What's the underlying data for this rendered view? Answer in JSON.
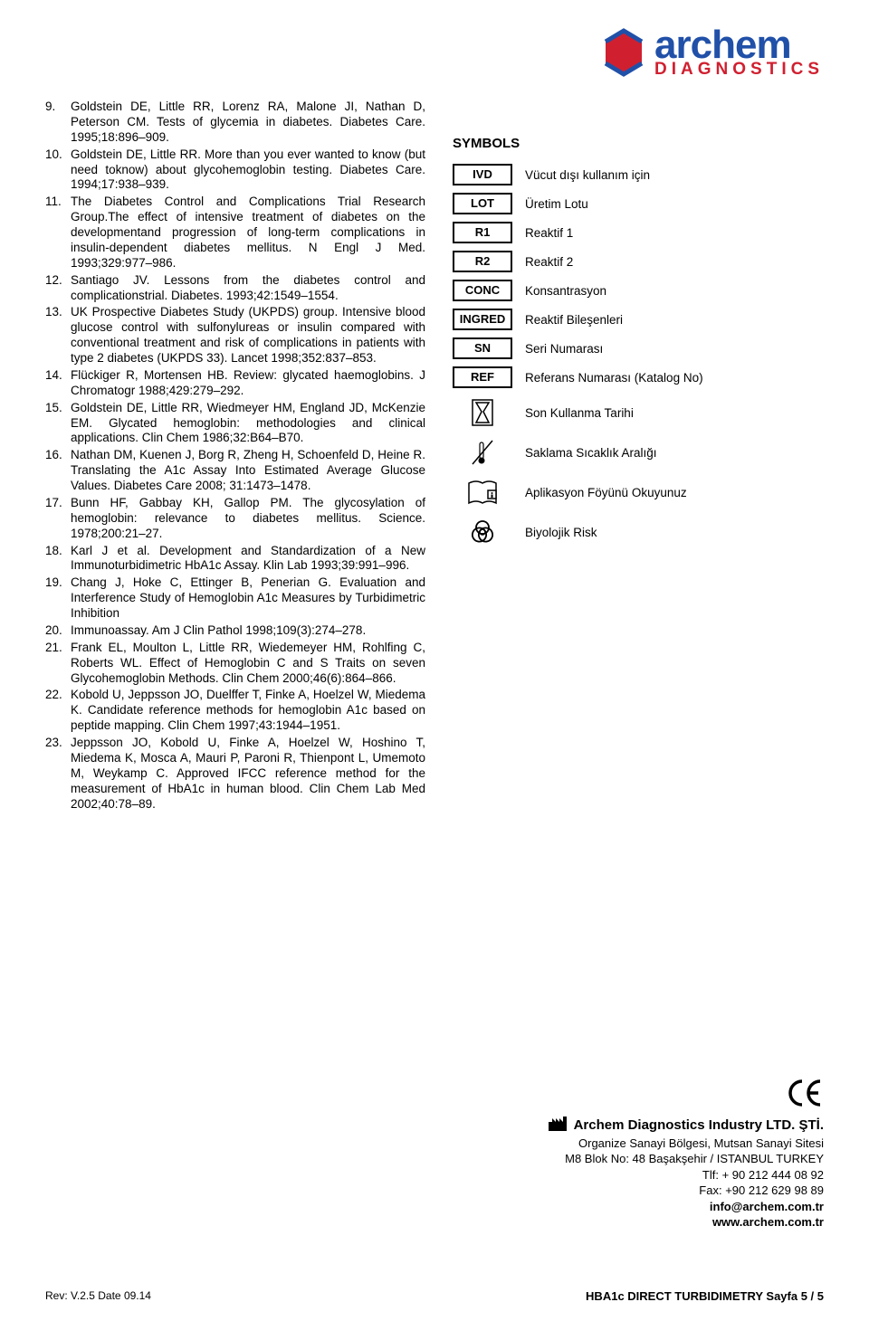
{
  "logo": {
    "main": "archem",
    "sub": "DIAGNOSTICS"
  },
  "references": [
    {
      "n": "9.",
      "t": "Goldstein DE, Little RR, Lorenz RA, Malone JI, Nathan D, Peterson CM. Tests of glycemia in diabetes. Diabetes Care. 1995;18:896–909."
    },
    {
      "n": "10.",
      "t": "Goldstein DE, Little RR. More than you ever wanted to know (but need toknow) about glycohemoglobin testing. Diabetes Care. 1994;17:938–939."
    },
    {
      "n": "11.",
      "t": "The Diabetes Control and Complications Trial Research Group.The effect of intensive treatment of diabetes on the developmentand progression of long-term complications in insulin-dependent diabetes mellitus. N Engl J Med. 1993;329:977–986."
    },
    {
      "n": "12.",
      "t": "Santiago JV. Lessons from the diabetes control and complicationstrial. Diabetes. 1993;42:1549–1554."
    },
    {
      "n": "13.",
      "t": "UK Prospective Diabetes Study (UKPDS) group. Intensive blood glucose control with sulfonylureas or insulin compared with conventional treatment and risk of complications in patients with type 2 diabetes (UKPDS 33). Lancet 1998;352:837–853."
    },
    {
      "n": "14.",
      "t": "Flückiger R, Mortensen HB. Review: glycated haemoglobins. J Chromatogr 1988;429:279–292."
    },
    {
      "n": "15.",
      "t": "Goldstein DE, Little RR, Wiedmeyer HM, England JD, McKenzie EM. Glycated hemoglobin: methodologies and clinical applications. Clin Chem 1986;32:B64–B70."
    },
    {
      "n": "16.",
      "t": "Nathan DM, Kuenen J, Borg R, Zheng H, Schoenfeld D, Heine R. Translating the A1c Assay Into Estimated Average Glucose Values. Diabetes Care 2008; 31:1473–1478."
    },
    {
      "n": "17.",
      "t": "Bunn HF, Gabbay KH, Gallop PM. The glycosylation of hemoglobin: relevance to diabetes mellitus. Science. 1978;200:21–27."
    },
    {
      "n": "18.",
      "t": "Karl J et al. Development and Standardization of a New Immunoturbidimetric HbA1c Assay. Klin Lab 1993;39:991–996."
    },
    {
      "n": "19.",
      "t": "Chang J, Hoke C, Ettinger B, Penerian G. Evaluation and Interference Study of Hemoglobin A1c Measures by Turbidimetric Inhibition"
    },
    {
      "n": "20.",
      "t": "Immunoassay. Am J Clin Pathol 1998;109(3):274–278."
    },
    {
      "n": "21.",
      "t": "Frank EL, Moulton L, Little RR, Wiedemeyer HM, Rohlfing C, Roberts WL. Effect of Hemoglobin C and S Traits on seven Glycohemoglobin Methods. Clin Chem 2000;46(6):864–866."
    },
    {
      "n": "22.",
      "t": "Kobold U, Jeppsson JO, Duelffer T, Finke A, Hoelzel W, Miedema K. Candidate reference methods for hemoglobin A1c based on peptide mapping. Clin Chem 1997;43:1944–1951."
    },
    {
      "n": "23.",
      "t": "Jeppsson JO, Kobold U, Finke A, Hoelzel W, Hoshino T, Miedema K, Mosca A, Mauri P, Paroni R, Thienpont L, Umemoto M, Weykamp C. Approved IFCC reference method for the measurement of HbA1c in human blood. Clin Chem Lab Med 2002;40:78–89."
    }
  ],
  "symbols": {
    "title": "SYMBOLS",
    "boxed": [
      {
        "code": "IVD",
        "desc": "Vücut dışı kullanım için"
      },
      {
        "code": "LOT",
        "desc": "Üretim Lotu"
      },
      {
        "code": "R1",
        "desc": "Reaktif 1"
      },
      {
        "code": "R2",
        "desc": "Reaktif 2"
      },
      {
        "code": "CONC",
        "desc": "Konsantrasyon"
      },
      {
        "code": "INGRED",
        "desc": "Reaktif Bileşenleri"
      },
      {
        "code": "SN",
        "desc": "Seri Numarası"
      },
      {
        "code": "REF",
        "desc": "Referans Numarası (Katalog No)"
      }
    ],
    "icons": [
      {
        "name": "hourglass-icon",
        "desc": "Son Kullanma Tarihi"
      },
      {
        "name": "thermometer-icon",
        "desc": "Saklama Sıcaklık Aralığı"
      },
      {
        "name": "manual-icon",
        "desc": "Aplikasyon Föyünü Okuyunuz"
      },
      {
        "name": "biohazard-icon",
        "desc": "Biyolojik Risk"
      }
    ]
  },
  "company": {
    "name": "Archem Diagnostics Industry LTD. ŞTİ.",
    "addr1": "Organize Sanayi Bölgesi, Mutsan Sanayi Sitesi",
    "addr2": "M8 Blok No: 48 Başakşehir / ISTANBUL  TURKEY",
    "tel": "Tlf: + 90 212 444 08 92",
    "fax": "Fax: +90 212 629 98 89",
    "email": "info@archem.com.tr",
    "web": "www.archem.com.tr"
  },
  "footer": {
    "left": "Rev: V.2.5 Date 09.14",
    "right": "HBA1c  DIRECT  TURBIDIMETRY  Sayfa 5 / 5"
  },
  "colors": {
    "logo_blue": "#2050a8",
    "logo_red": "#d02030",
    "text": "#000000",
    "bg": "#ffffff"
  }
}
